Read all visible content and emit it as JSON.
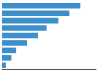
{
  "chart_data": {
    "type": "bar",
    "orientation": "horizontal",
    "values": [
      100,
      86,
      72,
      57,
      46,
      32,
      18,
      12,
      5
    ],
    "color": "#3d8fcc",
    "xlim": [
      0,
      120
    ],
    "tick_labels": false,
    "grid": false
  }
}
